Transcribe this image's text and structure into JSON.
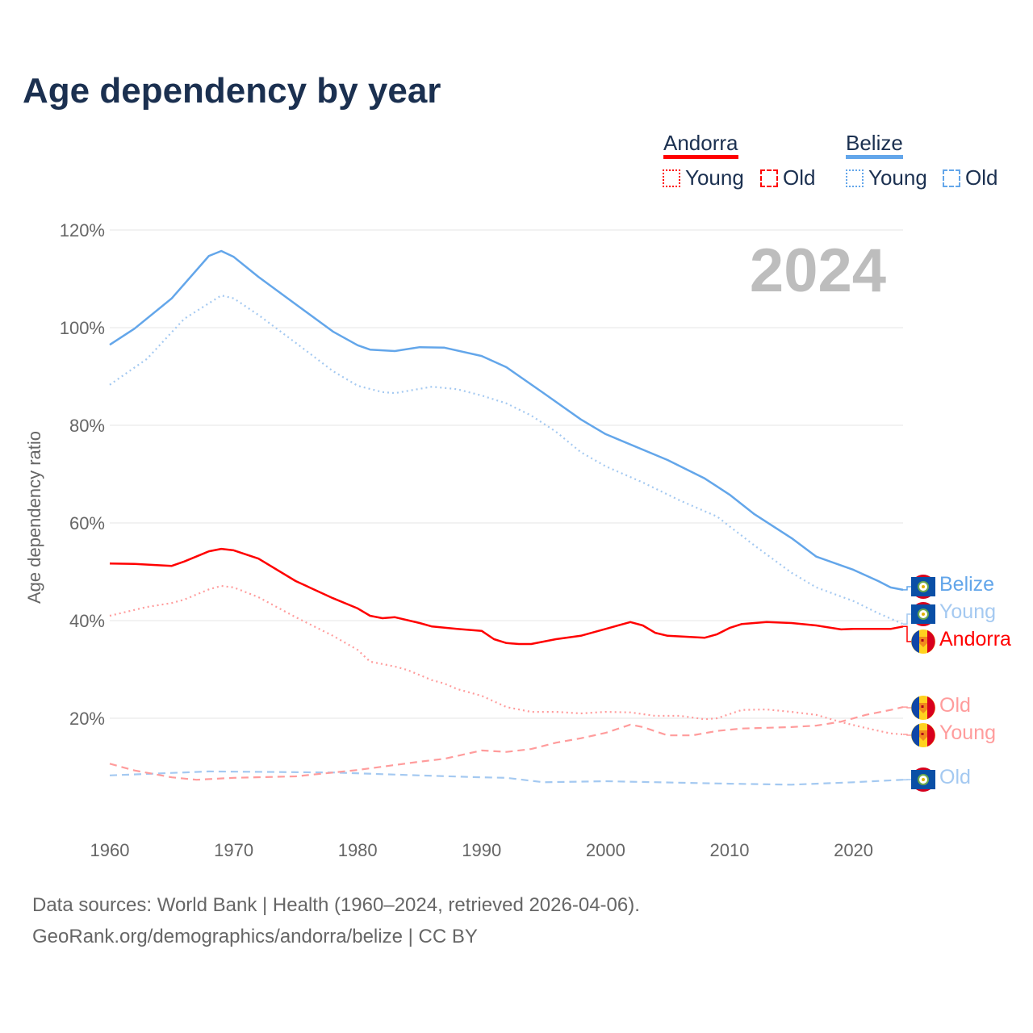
{
  "title": "Age dependency by year",
  "year_badge": "2024",
  "legend": {
    "a_name": "Andorra",
    "b_name": "Belize",
    "young": "Young",
    "old": "Old"
  },
  "end_labels": {
    "belize": "Belize",
    "belize_young": "Young",
    "andorra": "Andorra",
    "andorra_old": "Old",
    "andorra_young": "Young",
    "belize_old": "Old"
  },
  "source_line1": "Data sources: World Bank | Health (1960–2024, retrieved 2026-04-06).",
  "source_line2": "GeoRank.org/demographics/andorra/belize | CC BY",
  "colors": {
    "andorra": "#ff0000",
    "andorra_light": "#ff9c9c",
    "belize": "#63a6ea",
    "belize_light": "#a4c9f1"
  },
  "chart_data": {
    "type": "line",
    "title": "Age dependency by year",
    "xlabel": "",
    "ylabel": "Age dependency ratio",
    "xlim": [
      1960,
      2024
    ],
    "ylim": [
      0,
      120
    ],
    "xticks": [
      "1960",
      "1970",
      "1980",
      "1990",
      "2000",
      "2010",
      "2020"
    ],
    "yticks": [
      "20%",
      "40%",
      "60%",
      "80%",
      "100%",
      "120%"
    ],
    "series": [
      {
        "name": "Belize",
        "style": "solid",
        "color": "#63a6ea",
        "x": [
          1960,
          1962,
          1965,
          1968,
          1969,
          1970,
          1972,
          1975,
          1978,
          1980,
          1981,
          1983,
          1985,
          1987,
          1990,
          1992,
          1995,
          1998,
          2000,
          2005,
          2008,
          2010,
          2012,
          2015,
          2017,
          2020,
          2022,
          2023,
          2024
        ],
        "y": [
          96.5,
          99.8,
          106,
          114.7,
          115.7,
          114.5,
          110.4,
          104.8,
          99.2,
          96.4,
          95.5,
          95.2,
          96,
          95.9,
          94.2,
          91.9,
          86.6,
          81.2,
          78.2,
          72.9,
          69.1,
          65.8,
          61.8,
          56.9,
          53.1,
          50.4,
          48.1,
          46.8,
          46.3
        ]
      },
      {
        "name": "Belize Young",
        "style": "dotted",
        "color": "#a4c9f1",
        "x": [
          1960,
          1963,
          1966,
          1969,
          1970,
          1972,
          1975,
          1978,
          1980,
          1982,
          1983,
          1986,
          1988,
          1990,
          1992,
          1994,
          1996,
          1998,
          2000,
          2003,
          2006,
          2009,
          2010,
          2012,
          2015,
          2017,
          2020,
          2022,
          2024
        ],
        "y": [
          88.3,
          93.6,
          101.8,
          106.6,
          106,
          102.6,
          96.9,
          91.1,
          88.1,
          86.8,
          86.6,
          87.9,
          87.4,
          86.1,
          84.5,
          82,
          78.7,
          74.5,
          71.6,
          68.3,
          64.6,
          61.3,
          59.3,
          55.4,
          49.8,
          46.8,
          44,
          41.5,
          39.3
        ]
      },
      {
        "name": "Belize Old",
        "style": "dashed",
        "color": "#a4c9f1",
        "x": [
          1960,
          1968,
          1978,
          1985,
          1990,
          1992,
          1995,
          2000,
          2010,
          2015,
          2020,
          2024
        ],
        "y": [
          8.3,
          9.1,
          8.9,
          8.3,
          7.9,
          7.8,
          6.9,
          7.1,
          6.6,
          6.4,
          6.9,
          7.4
        ]
      },
      {
        "name": "Andorra",
        "style": "solid",
        "color": "#ff0000",
        "x": [
          1960,
          1962,
          1965,
          1966,
          1968,
          1969,
          1970,
          1972,
          1975,
          1978,
          1980,
          1981,
          1982,
          1983,
          1985,
          1986,
          1988,
          1990,
          1991,
          1992,
          1993,
          1994,
          1996,
          1998,
          2000,
          2002,
          2003,
          2004,
          2005,
          2008,
          2009,
          2010,
          2011,
          2013,
          2015,
          2017,
          2019,
          2020,
          2023,
          2024
        ],
        "y": [
          51.7,
          51.6,
          51.2,
          52.1,
          54.2,
          54.7,
          54.4,
          52.7,
          48.1,
          44.6,
          42.5,
          41,
          40.5,
          40.7,
          39.5,
          38.8,
          38.3,
          37.9,
          36.2,
          35.4,
          35.2,
          35.2,
          36.2,
          36.9,
          38.3,
          39.7,
          39,
          37.5,
          36.9,
          36.5,
          37.2,
          38.5,
          39.3,
          39.7,
          39.5,
          39,
          38.2,
          38.3,
          38.3,
          38.8
        ]
      },
      {
        "name": "Andorra Young",
        "style": "dotted",
        "color": "#ff9c9c",
        "x": [
          1960,
          1963,
          1965,
          1966,
          1968,
          1969,
          1970,
          1972,
          1975,
          1978,
          1980,
          1981,
          1983,
          1984,
          1986,
          1987,
          1988,
          1990,
          1992,
          1994,
          1996,
          1998,
          2000,
          2002,
          2004,
          2006,
          2008,
          2009,
          2011,
          2013,
          2015,
          2017,
          2019,
          2021,
          2023,
          2024
        ],
        "y": [
          41,
          42.8,
          43.6,
          44.3,
          46.4,
          47.1,
          46.8,
          44.8,
          40.7,
          36.9,
          34,
          31.6,
          30.6,
          29.9,
          27.8,
          27.1,
          26,
          24.6,
          22.3,
          21.3,
          21.3,
          21,
          21.3,
          21.2,
          20.5,
          20.5,
          19.8,
          20,
          21.7,
          21.8,
          21.3,
          20.7,
          19.2,
          18,
          16.9,
          16.7
        ]
      },
      {
        "name": "Andorra Old",
        "style": "dashed",
        "color": "#ff9c9c",
        "x": [
          1960,
          1962,
          1965,
          1967,
          1970,
          1975,
          1980,
          1985,
          1987,
          1990,
          1992,
          1994,
          1996,
          1998,
          2000,
          2002,
          2003,
          2005,
          2007,
          2009,
          2011,
          2015,
          2017,
          2019,
          2021,
          2023,
          2024
        ],
        "y": [
          10.7,
          9.3,
          7.9,
          7.4,
          7.8,
          8.1,
          9.4,
          11.1,
          11.7,
          13.4,
          13.1,
          13.7,
          15,
          15.9,
          17,
          18.7,
          18.2,
          16.5,
          16.5,
          17.4,
          17.9,
          18.2,
          18.5,
          19.3,
          20.7,
          21.7,
          22.3
        ]
      }
    ]
  }
}
